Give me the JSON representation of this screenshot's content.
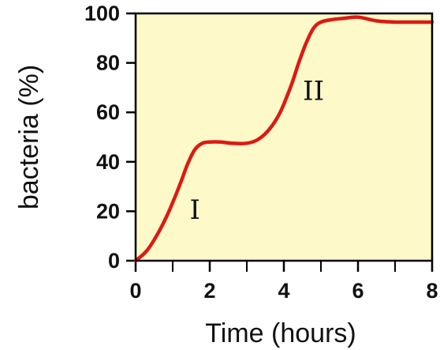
{
  "chart_data": {
    "type": "line",
    "title": "",
    "xlabel": "Time (hours)",
    "ylabel": "bacteria (%)",
    "xlim": [
      0,
      8
    ],
    "ylim": [
      0,
      100
    ],
    "x_ticks": [
      0,
      2,
      4,
      6,
      8
    ],
    "x_tick_labels": [
      "0",
      "2",
      "4",
      "6",
      "8"
    ],
    "x_minor_ticks": [
      1,
      3,
      5,
      7
    ],
    "y_ticks": [
      0,
      20,
      40,
      60,
      80,
      100
    ],
    "y_tick_labels": [
      "0",
      "20",
      "40",
      "60",
      "80",
      "100"
    ],
    "grid": false,
    "background_color": "#fdf9c9",
    "series": [
      {
        "color": "#dd1a12",
        "x": [
          0,
          0.3,
          0.6,
          0.9,
          1.2,
          1.4,
          1.6,
          1.8,
          2.0,
          2.3,
          2.6,
          3.0,
          3.3,
          3.6,
          3.9,
          4.2,
          4.4,
          4.6,
          4.8,
          5.0,
          5.3,
          5.6,
          6.0,
          6.5,
          7.0,
          7.5,
          8.0
        ],
        "y": [
          0,
          4,
          11,
          20,
          31,
          39,
          45,
          47.5,
          48,
          48,
          47.5,
          47.5,
          49,
          53,
          60,
          71,
          80,
          88,
          94,
          96.5,
          97.5,
          98,
          98.5,
          97,
          96.5,
          96.5,
          96.5
        ]
      }
    ],
    "annotations": [
      {
        "text": "I",
        "x": 1.6,
        "y": 17
      },
      {
        "text": "II",
        "x": 4.8,
        "y": 65
      }
    ]
  }
}
